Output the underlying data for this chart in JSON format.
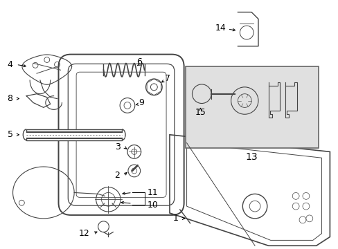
{
  "background_color": "#ffffff",
  "line_color": "#444444",
  "text_color": "#000000",
  "font_size": 9,
  "box13_bg": "#e0e0e0",
  "figsize": [
    4.89,
    3.6
  ],
  "dpi": 100
}
